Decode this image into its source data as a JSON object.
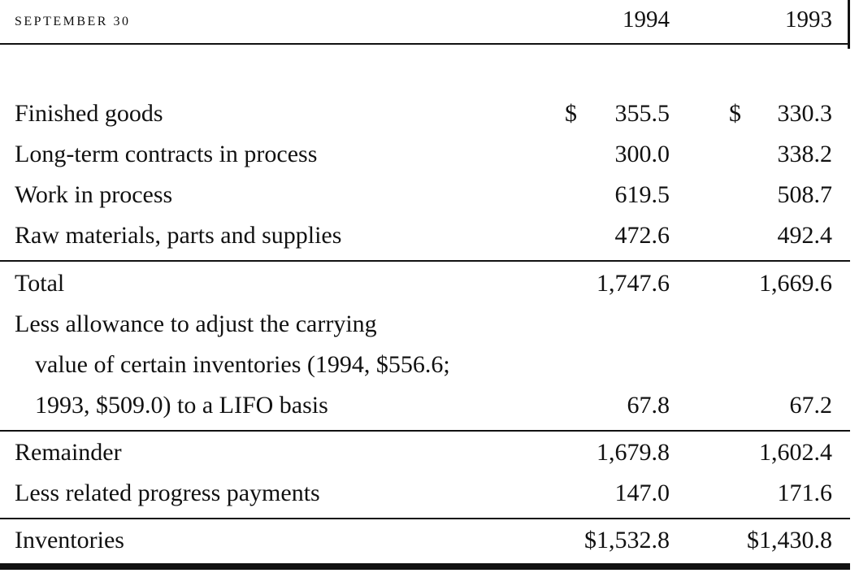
{
  "header": {
    "label": "SEPTEMBER 30",
    "year_1": "1994",
    "year_2": "1993"
  },
  "rows": {
    "finished_goods": {
      "label": "Finished goods",
      "dollar": "$",
      "v1994": "355.5",
      "v1993": "330.3"
    },
    "long_term": {
      "label": "Long-term contracts in process",
      "v1994": "300.0",
      "v1993": "338.2"
    },
    "work_in_process": {
      "label": "Work in process",
      "v1994": "619.5",
      "v1993": "508.7"
    },
    "raw_materials": {
      "label": "Raw materials, parts and supplies",
      "v1994": "472.6",
      "v1993": "492.4"
    },
    "total": {
      "label": "Total",
      "v1994": "1,747.6",
      "v1993": "1,669.6"
    },
    "allowance": {
      "line1": "Less allowance to adjust the carrying",
      "line2": "value of certain inventories (1994, $556.6;",
      "line3": "1993, $509.0) to a LIFO basis",
      "v1994": "67.8",
      "v1993": "67.2"
    },
    "remainder": {
      "label": "Remainder",
      "v1994": "1,679.8",
      "v1993": "1,602.4"
    },
    "progress": {
      "label": "Less related progress payments",
      "v1994": "147.0",
      "v1993": "171.6"
    },
    "inventories": {
      "label": "Inventories",
      "v1994": "$1,532.8",
      "v1993": "$1,430.8"
    }
  }
}
